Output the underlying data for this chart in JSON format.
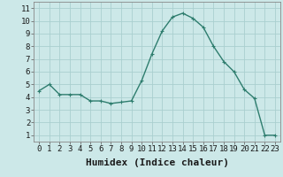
{
  "x": [
    0,
    1,
    2,
    3,
    4,
    5,
    6,
    7,
    8,
    9,
    10,
    11,
    12,
    13,
    14,
    15,
    16,
    17,
    18,
    19,
    20,
    21,
    22,
    23
  ],
  "y": [
    4.5,
    5.0,
    4.2,
    4.2,
    4.2,
    3.7,
    3.7,
    3.5,
    3.6,
    3.7,
    5.3,
    7.4,
    9.2,
    10.3,
    10.6,
    10.2,
    9.5,
    8.0,
    6.8,
    6.0,
    4.6,
    3.9,
    1.0,
    1.0
  ],
  "line_color": "#2e7d6e",
  "marker": "+",
  "marker_size": 3,
  "bg_color": "#cce8e8",
  "grid_color": "#aacfcf",
  "xlabel": "Humidex (Indice chaleur)",
  "xlim": [
    -0.5,
    23.5
  ],
  "ylim": [
    0.5,
    11.5
  ],
  "yticks": [
    1,
    2,
    3,
    4,
    5,
    6,
    7,
    8,
    9,
    10,
    11
  ],
  "xticks": [
    0,
    1,
    2,
    3,
    4,
    5,
    6,
    7,
    8,
    9,
    10,
    11,
    12,
    13,
    14,
    15,
    16,
    17,
    18,
    19,
    20,
    21,
    22,
    23
  ],
  "tick_fontsize": 6.5,
  "xlabel_fontsize": 8,
  "line_width": 1.0
}
